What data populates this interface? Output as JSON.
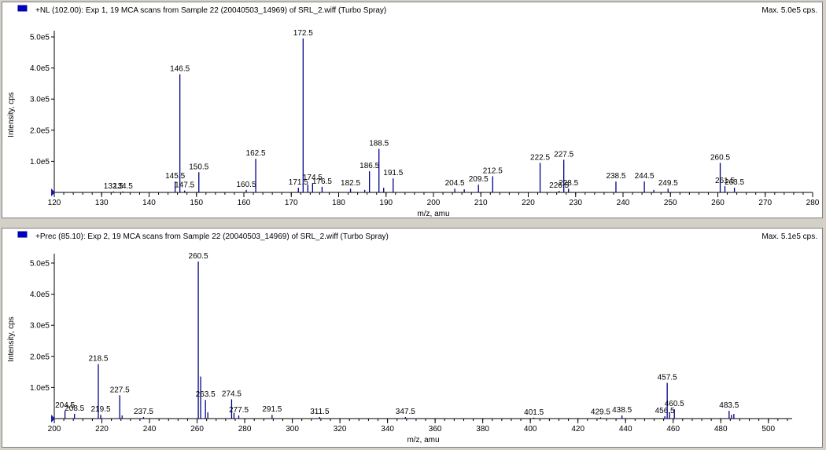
{
  "panes": [
    {
      "title": "+NL (102.00): Exp 1, 19 MCA scans from Sample 22 (20040503_14969) of SRL_2.wiff (Turbo Spray)",
      "max_label": "Max. 5.0e5 cps.",
      "chart_data": {
        "type": "bar",
        "xlabel": "m/z, amu",
        "ylabel": "Intensity, cps",
        "xlim": [
          120,
          280
        ],
        "ylim": [
          0,
          500000
        ],
        "xticks": [
          120,
          130,
          140,
          150,
          160,
          170,
          180,
          190,
          200,
          210,
          220,
          230,
          240,
          250,
          260,
          270,
          280
        ],
        "yticks": [
          {
            "value": 100000,
            "label": "1.0e5"
          },
          {
            "value": 200000,
            "label": "2.0e5"
          },
          {
            "value": 300000,
            "label": "3.0e5"
          },
          {
            "value": 400000,
            "label": "4.0e5"
          },
          {
            "value": 500000,
            "label": "5.0e5"
          }
        ],
        "peaks": [
          {
            "x": 132.5,
            "y": 3000,
            "label": "132.5"
          },
          {
            "x": 134.5,
            "y": 3000,
            "label": "134.5"
          },
          {
            "x": 145.5,
            "y": 35000,
            "label": "145.5"
          },
          {
            "x": 146.5,
            "y": 380000,
            "label": "146.5"
          },
          {
            "x": 147.5,
            "y": 6000,
            "label": "147.5"
          },
          {
            "x": 150.5,
            "y": 65000,
            "label": "150.5"
          },
          {
            "x": 160.5,
            "y": 8000,
            "label": "160.5"
          },
          {
            "x": 162.5,
            "y": 108000,
            "label": "162.5"
          },
          {
            "x": 171.5,
            "y": 15000,
            "label": "171.5"
          },
          {
            "x": 172.5,
            "y": 495000,
            "label": "172.5"
          },
          {
            "x": 173.5,
            "y": 25000,
            "label": ""
          },
          {
            "x": 174.5,
            "y": 30000,
            "label": "174.5"
          },
          {
            "x": 176.5,
            "y": 18000,
            "label": "176.5"
          },
          {
            "x": 182.5,
            "y": 12000,
            "label": "182.5"
          },
          {
            "x": 185.5,
            "y": 8000,
            "label": ""
          },
          {
            "x": 186.5,
            "y": 68000,
            "label": "186.5"
          },
          {
            "x": 188.5,
            "y": 140000,
            "label": "188.5"
          },
          {
            "x": 189.5,
            "y": 15000,
            "label": ""
          },
          {
            "x": 191.5,
            "y": 45000,
            "label": "191.5"
          },
          {
            "x": 204.5,
            "y": 12000,
            "label": "204.5"
          },
          {
            "x": 206.5,
            "y": 10000,
            "label": ""
          },
          {
            "x": 209.5,
            "y": 25000,
            "label": "209.5"
          },
          {
            "x": 212.5,
            "y": 52000,
            "label": "212.5"
          },
          {
            "x": 222.5,
            "y": 95000,
            "label": "222.5"
          },
          {
            "x": 226.5,
            "y": 5000,
            "label": "226.5"
          },
          {
            "x": 227.5,
            "y": 105000,
            "label": "227.5"
          },
          {
            "x": 228.5,
            "y": 12000,
            "label": "228.5"
          },
          {
            "x": 238.5,
            "y": 35000,
            "label": "238.5"
          },
          {
            "x": 244.5,
            "y": 35000,
            "label": "244.5"
          },
          {
            "x": 246.5,
            "y": 8000,
            "label": ""
          },
          {
            "x": 249.5,
            "y": 12000,
            "label": "249.5"
          },
          {
            "x": 260.5,
            "y": 95000,
            "label": "260.5"
          },
          {
            "x": 261.5,
            "y": 20000,
            "label": "261.5"
          },
          {
            "x": 263.5,
            "y": 15000,
            "label": "263.5"
          }
        ]
      }
    },
    {
      "title": "+Prec (85.10): Exp 2, 19 MCA scans from Sample 22 (20040503_14969) of SRL_2.wiff (Turbo Spray)",
      "max_label": "Max. 5.1e5 cps.",
      "chart_data": {
        "type": "bar",
        "xlabel": "m/z, amu",
        "ylabel": "Intensity, cps",
        "xlim": [
          200,
          510
        ],
        "ylim": [
          0,
          510000
        ],
        "xticks": [
          200,
          220,
          240,
          260,
          280,
          300,
          320,
          340,
          360,
          380,
          400,
          420,
          440,
          460,
          480,
          500
        ],
        "yticks": [
          {
            "value": 100000,
            "label": "1.0e5"
          },
          {
            "value": 200000,
            "label": "2.0e5"
          },
          {
            "value": 300000,
            "label": "3.0e5"
          },
          {
            "value": 400000,
            "label": "4.0e5"
          },
          {
            "value": 500000,
            "label": "5.0e5"
          }
        ],
        "peaks": [
          {
            "x": 204.5,
            "y": 25000,
            "label": "204.5"
          },
          {
            "x": 208.5,
            "y": 15000,
            "label": "208.5"
          },
          {
            "x": 218.5,
            "y": 175000,
            "label": "218.5"
          },
          {
            "x": 219.5,
            "y": 12000,
            "label": "219.5"
          },
          {
            "x": 227.5,
            "y": 75000,
            "label": "227.5"
          },
          {
            "x": 228.5,
            "y": 10000,
            "label": ""
          },
          {
            "x": 237.5,
            "y": 5000,
            "label": "237.5"
          },
          {
            "x": 260.5,
            "y": 505000,
            "label": "260.5"
          },
          {
            "x": 261.5,
            "y": 135000,
            "label": ""
          },
          {
            "x": 263.5,
            "y": 60000,
            "label": "263.5"
          },
          {
            "x": 264.5,
            "y": 20000,
            "label": ""
          },
          {
            "x": 274.5,
            "y": 62000,
            "label": "274.5"
          },
          {
            "x": 275.5,
            "y": 18000,
            "label": ""
          },
          {
            "x": 277.5,
            "y": 10000,
            "label": "277.5"
          },
          {
            "x": 291.5,
            "y": 12000,
            "label": "291.5"
          },
          {
            "x": 311.5,
            "y": 5000,
            "label": "311.5"
          },
          {
            "x": 347.5,
            "y": 5000,
            "label": "347.5"
          },
          {
            "x": 401.5,
            "y": 3000,
            "label": "401.5"
          },
          {
            "x": 429.5,
            "y": 4000,
            "label": "429.5"
          },
          {
            "x": 438.5,
            "y": 10000,
            "label": "438.5"
          },
          {
            "x": 456.5,
            "y": 8000,
            "label": "456.5"
          },
          {
            "x": 457.5,
            "y": 115000,
            "label": "457.5"
          },
          {
            "x": 458.5,
            "y": 20000,
            "label": ""
          },
          {
            "x": 460.5,
            "y": 30000,
            "label": "460.5"
          },
          {
            "x": 483.5,
            "y": 25000,
            "label": "483.5"
          },
          {
            "x": 484.5,
            "y": 12000,
            "label": ""
          },
          {
            "x": 485.5,
            "y": 15000,
            "label": ""
          }
        ]
      }
    }
  ],
  "colors": {
    "peak": "#00008b",
    "icon": "#0000cc",
    "axis": "#000000",
    "marker": "#1c1cb0"
  }
}
